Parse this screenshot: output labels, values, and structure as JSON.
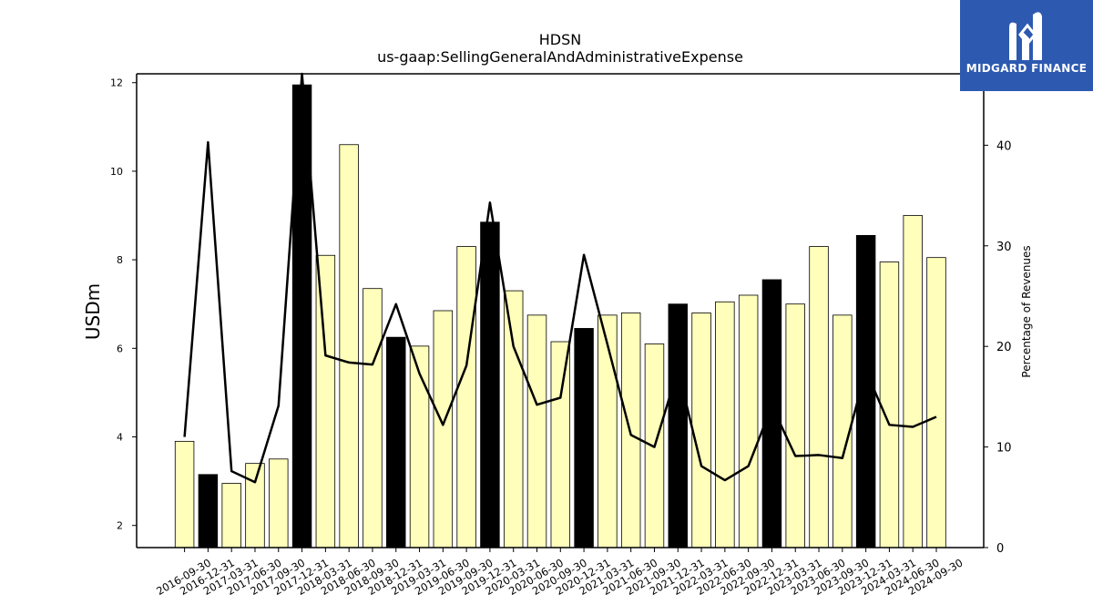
{
  "chart_data": {
    "type": "bar",
    "title": "HDSN",
    "subtitle": "us-gaap:SellingGeneralAndAdministrativeExpense",
    "ylabel": "USDm",
    "y2label": "Percentage of Revenues",
    "ylim": [
      1.5,
      12.2
    ],
    "y2lim": [
      0,
      47.1
    ],
    "yticks": [
      2,
      4,
      6,
      8,
      10,
      12
    ],
    "y2ticks": [
      0,
      10,
      20,
      30,
      40
    ],
    "categories": [
      "2016-09-30",
      "2016-12-31",
      "2017-03-31",
      "2017-06-30",
      "2017-09-30",
      "2017-12-31",
      "2018-03-31",
      "2018-06-30",
      "2018-09-30",
      "2018-12-31",
      "2019-03-31",
      "2019-06-30",
      "2019-09-30",
      "2019-12-31",
      "2020-03-31",
      "2020-06-30",
      "2020-09-30",
      "2020-12-31",
      "2021-03-31",
      "2021-06-30",
      "2021-09-30",
      "2021-12-31",
      "2022-03-31",
      "2022-06-30",
      "2022-09-30",
      "2022-12-31",
      "2023-03-31",
      "2023-06-30",
      "2023-09-30",
      "2023-12-31",
      "2024-03-31",
      "2024-06-30",
      "2024-09-30"
    ],
    "series": [
      {
        "kind": "bar",
        "axis": "left",
        "values": [
          3.9,
          3.15,
          2.95,
          3.4,
          3.5,
          11.95,
          8.1,
          10.6,
          7.35,
          6.25,
          6.05,
          6.85,
          8.3,
          8.85,
          7.3,
          6.75,
          6.15,
          6.45,
          6.75,
          6.8,
          6.1,
          7.0,
          6.8,
          7.05,
          7.2,
          7.55,
          7.0,
          8.3,
          6.75,
          8.55,
          7.95,
          9.0,
          8.05
        ],
        "highlight": [
          false,
          true,
          false,
          false,
          false,
          true,
          false,
          false,
          false,
          true,
          false,
          false,
          false,
          true,
          false,
          false,
          false,
          true,
          false,
          false,
          false,
          true,
          false,
          false,
          false,
          true,
          false,
          false,
          false,
          true,
          false,
          false,
          false
        ]
      },
      {
        "kind": "line",
        "axis": "right",
        "values": [
          11,
          40.3,
          7.6,
          6.5,
          14.1,
          47.1,
          19.1,
          18.4,
          18.2,
          24.2,
          17.3,
          12.2,
          18.1,
          34.3,
          20,
          14.2,
          14.9,
          29.1,
          20.2,
          11.2,
          10,
          17.7,
          8.1,
          6.7,
          8.1,
          14.1,
          9.1,
          9.2,
          8.9,
          17.6,
          12.2,
          12,
          13
        ]
      }
    ],
    "colors": {
      "bar": "#ffffbb",
      "bar_highlight": "#000000",
      "bar_edge": "#000000",
      "line": "#000000"
    },
    "grid": false,
    "legend": "none"
  },
  "logo": {
    "text": "MIDGARD FINANCE",
    "bg": "#2d5ab0"
  }
}
